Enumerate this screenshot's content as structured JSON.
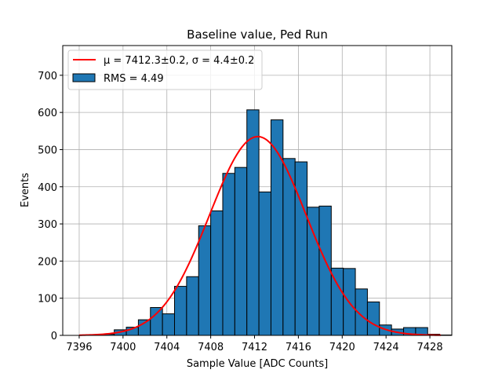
{
  "chart_data": {
    "type": "bar",
    "title": "Baseline value, Ped Run",
    "xlabel": "Sample Value [ADC Counts]",
    "ylabel": "Events",
    "xlim": [
      7394.5,
      7430.0
    ],
    "ylim": [
      0,
      780
    ],
    "xticks": [
      7396,
      7400,
      7404,
      7408,
      7412,
      7416,
      7420,
      7424,
      7428
    ],
    "yticks": [
      0,
      100,
      200,
      300,
      400,
      500,
      600,
      700
    ],
    "grid": true,
    "legend_position": "top-left",
    "colors": {
      "bars": "#1f77b4",
      "fit": "#ff0000",
      "edge": "#000000",
      "grid": "#b0b0b0"
    },
    "histogram": {
      "name": "RMS = 4.49",
      "bin_width": 1.1,
      "bins": [
        {
          "x0": 7395.9,
          "count": 0
        },
        {
          "x0": 7397.0,
          "count": 2
        },
        {
          "x0": 7398.1,
          "count": 3
        },
        {
          "x0": 7399.2,
          "count": 15
        },
        {
          "x0": 7400.3,
          "count": 22
        },
        {
          "x0": 7401.4,
          "count": 42
        },
        {
          "x0": 7402.5,
          "count": 75
        },
        {
          "x0": 7403.6,
          "count": 58
        },
        {
          "x0": 7404.7,
          "count": 132
        },
        {
          "x0": 7405.8,
          "count": 158
        },
        {
          "x0": 7406.9,
          "count": 295
        },
        {
          "x0": 7408.0,
          "count": 335
        },
        {
          "x0": 7409.1,
          "count": 436
        },
        {
          "x0": 7410.2,
          "count": 452
        },
        {
          "x0": 7411.3,
          "count": 607
        },
        {
          "x0": 7412.4,
          "count": 386
        },
        {
          "x0": 7413.5,
          "count": 580
        },
        {
          "x0": 7414.6,
          "count": 476
        },
        {
          "x0": 7415.7,
          "count": 467
        },
        {
          "x0": 7416.8,
          "count": 345
        },
        {
          "x0": 7417.9,
          "count": 348
        },
        {
          "x0": 7419.0,
          "count": 181
        },
        {
          "x0": 7420.1,
          "count": 180
        },
        {
          "x0": 7421.2,
          "count": 125
        },
        {
          "x0": 7422.3,
          "count": 90
        },
        {
          "x0": 7423.4,
          "count": 28
        },
        {
          "x0": 7424.5,
          "count": 17
        },
        {
          "x0": 7425.6,
          "count": 21
        },
        {
          "x0": 7426.7,
          "count": 21
        },
        {
          "x0": 7427.8,
          "count": 3
        },
        {
          "x0": 7428.9,
          "count": 1
        }
      ]
    },
    "fit": {
      "name": "μ = 7412.3±0.2, σ = 4.4±0.2",
      "type": "gaussian",
      "mu": 7412.3,
      "sigma": 4.4,
      "amplitude": 535,
      "x_range": [
        7396.0,
        7429.0
      ]
    }
  }
}
